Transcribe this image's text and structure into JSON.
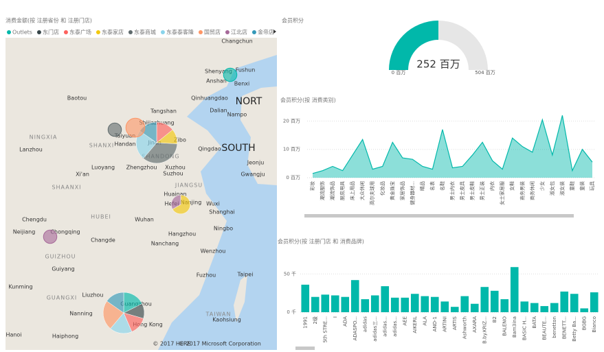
{
  "chart_data": [
    {
      "type": "map",
      "title": "消费金额(按 注册省份 和 注册门店)",
      "series": [
        {
          "name": "Outlets",
          "color": "#01b8aa"
        },
        {
          "name": "东门店",
          "color": "#374649"
        },
        {
          "name": "东泰广场",
          "color": "#fd625e"
        },
        {
          "name": "东泰家店",
          "color": "#f2c80f"
        },
        {
          "name": "东泰商城",
          "color": "#5f6b6d"
        },
        {
          "name": "东泰泰客隆",
          "color": "#8ad4eb"
        },
        {
          "name": "国贸店",
          "color": "#fe9666"
        },
        {
          "name": "江北店",
          "color": "#a66999"
        },
        {
          "name": "金帝店",
          "color": "#3599b8"
        }
      ],
      "bubbles": [
        {
          "values": [
            0,
            0,
            12,
            10,
            30,
            20,
            0,
            0,
            13
          ]
        },
        {
          "values": [
            15,
            10,
            12,
            0,
            0,
            15,
            20,
            0,
            13
          ]
        },
        {
          "values": [
            0,
            0,
            0,
            0,
            9,
            0,
            0,
            0,
            0
          ]
        },
        {
          "values": [
            0,
            0,
            0,
            0,
            0,
            0,
            18,
            0,
            0
          ]
        },
        {
          "values": [
            9,
            0,
            0,
            0,
            0,
            0,
            0,
            0,
            0
          ]
        },
        {
          "values": [
            0,
            0,
            0,
            12,
            0,
            0,
            0,
            6,
            0
          ]
        },
        {
          "values": [
            0,
            0,
            0,
            0,
            0,
            0,
            0,
            9,
            0
          ]
        }
      ],
      "map_labels": [
        "Changchun",
        "Baotou",
        "Shenyang",
        "Fushun",
        "Anshan",
        "Benxi",
        "Tangshan",
        "Qinhuangdao",
        "Dalian",
        "NORT",
        "Nampo",
        "Taiyuan",
        "Shijiazhuang",
        "Jinan",
        "Zibo",
        "Handan",
        "SHANXI",
        "NINGXIA",
        "Lanzhou",
        "Qingdao",
        "SOUTH",
        "SHANDONG",
        "Luoyang",
        "Zhengzhou",
        "Xuzhou",
        "Suzhou",
        "Jeonju",
        "Gwangju",
        "Xi'an",
        "SHAANXI",
        "JIANGSU",
        "Huainan",
        "Hefei",
        "Nanjing",
        "Wuxi",
        "Shanghai",
        "Chengdu",
        "HUBEI",
        "Wuhan",
        "Ningbo",
        "Neijiang",
        "Chongqing",
        "Changde",
        "Nanchang",
        "Hangzhou",
        "Wenzhou",
        "GUIZHOU",
        "Guiyang",
        "Fuzhou",
        "Kunming",
        "Liuzhou",
        "Taipei",
        "GUANGXI",
        "Guangzhou",
        "Nanning",
        "Hong Kong",
        "Kaohsiung",
        "TAIWAN",
        "Hanoi",
        "Haiphong",
        "© 2017 HERE",
        "© 2017 Microsoft Corporation"
      ]
    },
    {
      "type": "gauge",
      "title": "会员积分",
      "value": 252,
      "value_label": "252 百万",
      "min": 0,
      "min_label": "0 百万",
      "max": 504,
      "max_label": "504 百万",
      "color": "#01b8aa"
    },
    {
      "type": "area",
      "title": "会员积分(按 消费类别)",
      "color": "#01b8aa",
      "categories": [
        "彩妆",
        "潮流服饰",
        "潮流饰品",
        "厨房用具",
        "床上用品",
        "大众休闲",
        "高尔夫球用",
        "化妆品",
        "黄金珠宝",
        "家居饰品",
        "健身器材...",
        "睛品",
        "名表",
        "名鞋",
        "男士内衣",
        "男士皮具",
        "男士皮鞋",
        "男士正装",
        "内衣",
        "女士家居服",
        "女鞋",
        "商务男装",
        "商务休闲",
        "少女",
        "淑女包",
        "淑女装",
        "童鞋",
        "童装",
        "玩具"
      ],
      "values": [
        1.5,
        2.5,
        4,
        2.5,
        8,
        13.5,
        3,
        4,
        12.5,
        7,
        6.5,
        4,
        3,
        17,
        3.5,
        4,
        8,
        12.5,
        6,
        3,
        14,
        11,
        9,
        20.5,
        8,
        22,
        2.5,
        10,
        5.5
      ],
      "ylim": [
        0,
        23
      ],
      "yticks": [
        {
          "value": 0,
          "label": "0 百万"
        },
        {
          "value": 10,
          "label": "10 百万"
        },
        {
          "value": 20,
          "label": "20 百万"
        }
      ]
    },
    {
      "type": "bar",
      "title": "会员积分(按 注册门店 和 消费品牌)",
      "color": "#01b8aa",
      "categories": [
        "1991",
        "2级",
        "5th STRE...",
        "I",
        "ADA",
        "ADASPO...",
        "adidas",
        "adidas三...",
        "adidas...",
        "adidas...",
        "AEE",
        "AIKERL",
        "ALA",
        "AND-1",
        "ARTINI",
        "ARTIS",
        "Ashworth",
        "AXARA",
        "B.by.KRIZ...",
        "B2",
        "BALENO",
        "Bam3ina",
        "BASIC H...",
        "BATA",
        "BEAUTE...",
        "benetton",
        "BENETT...",
        "Betty Ba...",
        "BGBG",
        "Bianco"
      ],
      "values": [
        36,
        20,
        23,
        22,
        20,
        42,
        17,
        22,
        34,
        19,
        19,
        24,
        21,
        20,
        14,
        7,
        21,
        11,
        33,
        28,
        17,
        59,
        14,
        12,
        8,
        12,
        27,
        24,
        5,
        26
      ],
      "ylim": [
        0,
        70
      ],
      "yticks": [
        {
          "value": 0,
          "label": "0 千"
        },
        {
          "value": 50,
          "label": "50 千"
        }
      ]
    }
  ]
}
